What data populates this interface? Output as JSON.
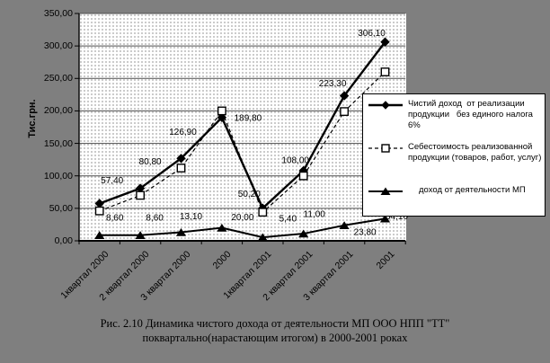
{
  "colors": {
    "background": "#7f7f7f",
    "plot_background": "#ffffff",
    "plot_dots": "#9c9c9c",
    "gridline": "#4d4d4d",
    "axis": "#000000",
    "series": "#000000",
    "legend_background": "#ffffff",
    "text": "#000000"
  },
  "chart_data": {
    "type": "line",
    "title": "",
    "xlabel": "",
    "ylabel": "Тис.грн.",
    "ylim": [
      0,
      350
    ],
    "ytick_step": 50,
    "yticks": [
      "350,00",
      "300,00",
      "250,00",
      "200,00",
      "150,00",
      "100,00",
      "50,00",
      "0,00"
    ],
    "grid": "horizontal",
    "legend_position": "right-overlay",
    "categories": [
      "1квартал 2000",
      "2 квартал 2000",
      "3 квартал 2000",
      "2000",
      "1квартал 2001",
      "2 квартал 2001",
      "3 квартал 2001",
      "2001"
    ],
    "series": [
      {
        "name": "Чистий доход от реализации продукции без единого налога 6%",
        "line": "solid",
        "marker": "diamond",
        "values": [
          57.4,
          80.8,
          126.9,
          189.8,
          50.2,
          108.0,
          223.3,
          306.1
        ],
        "point_labels": [
          "57,40",
          "80,80",
          "126,90",
          "189,80",
          "50,20",
          "108,00",
          "223,30",
          "306,10"
        ]
      },
      {
        "name": "Себестоимость реализованной продукции (товаров, работ, услуг)",
        "line": "dashed",
        "marker": "open-square",
        "values": [
          46,
          70,
          112,
          200,
          44,
          100,
          199,
          260
        ],
        "point_labels": []
      },
      {
        "name": "доход от деятельности МП",
        "line": "solid",
        "marker": "triangle",
        "values": [
          8.6,
          8.6,
          13.1,
          20.0,
          5.4,
          11.0,
          23.8,
          34.1
        ],
        "point_labels": [
          "8,60",
          "8,60",
          "13,10",
          "20,00",
          "5,40",
          "11,00",
          "23,80",
          "34,10"
        ]
      }
    ]
  },
  "legend": {
    "items": [
      {
        "label": "Чистий доход  от реализации\nпродукции   без единого налога\n6%"
      },
      {
        "label": "Себестоимость реализованной\nпродукции (товаров, работ, услуг)"
      },
      {
        "label": "доход от деятельности МП"
      }
    ]
  },
  "caption": {
    "line1": "Рис. 2.10 Динамика чистого дохода от деятельности МП ООО НПП \"ТТ\"",
    "line2": "поквартально(нарастающим итогом) в 2000-2001 роках"
  }
}
